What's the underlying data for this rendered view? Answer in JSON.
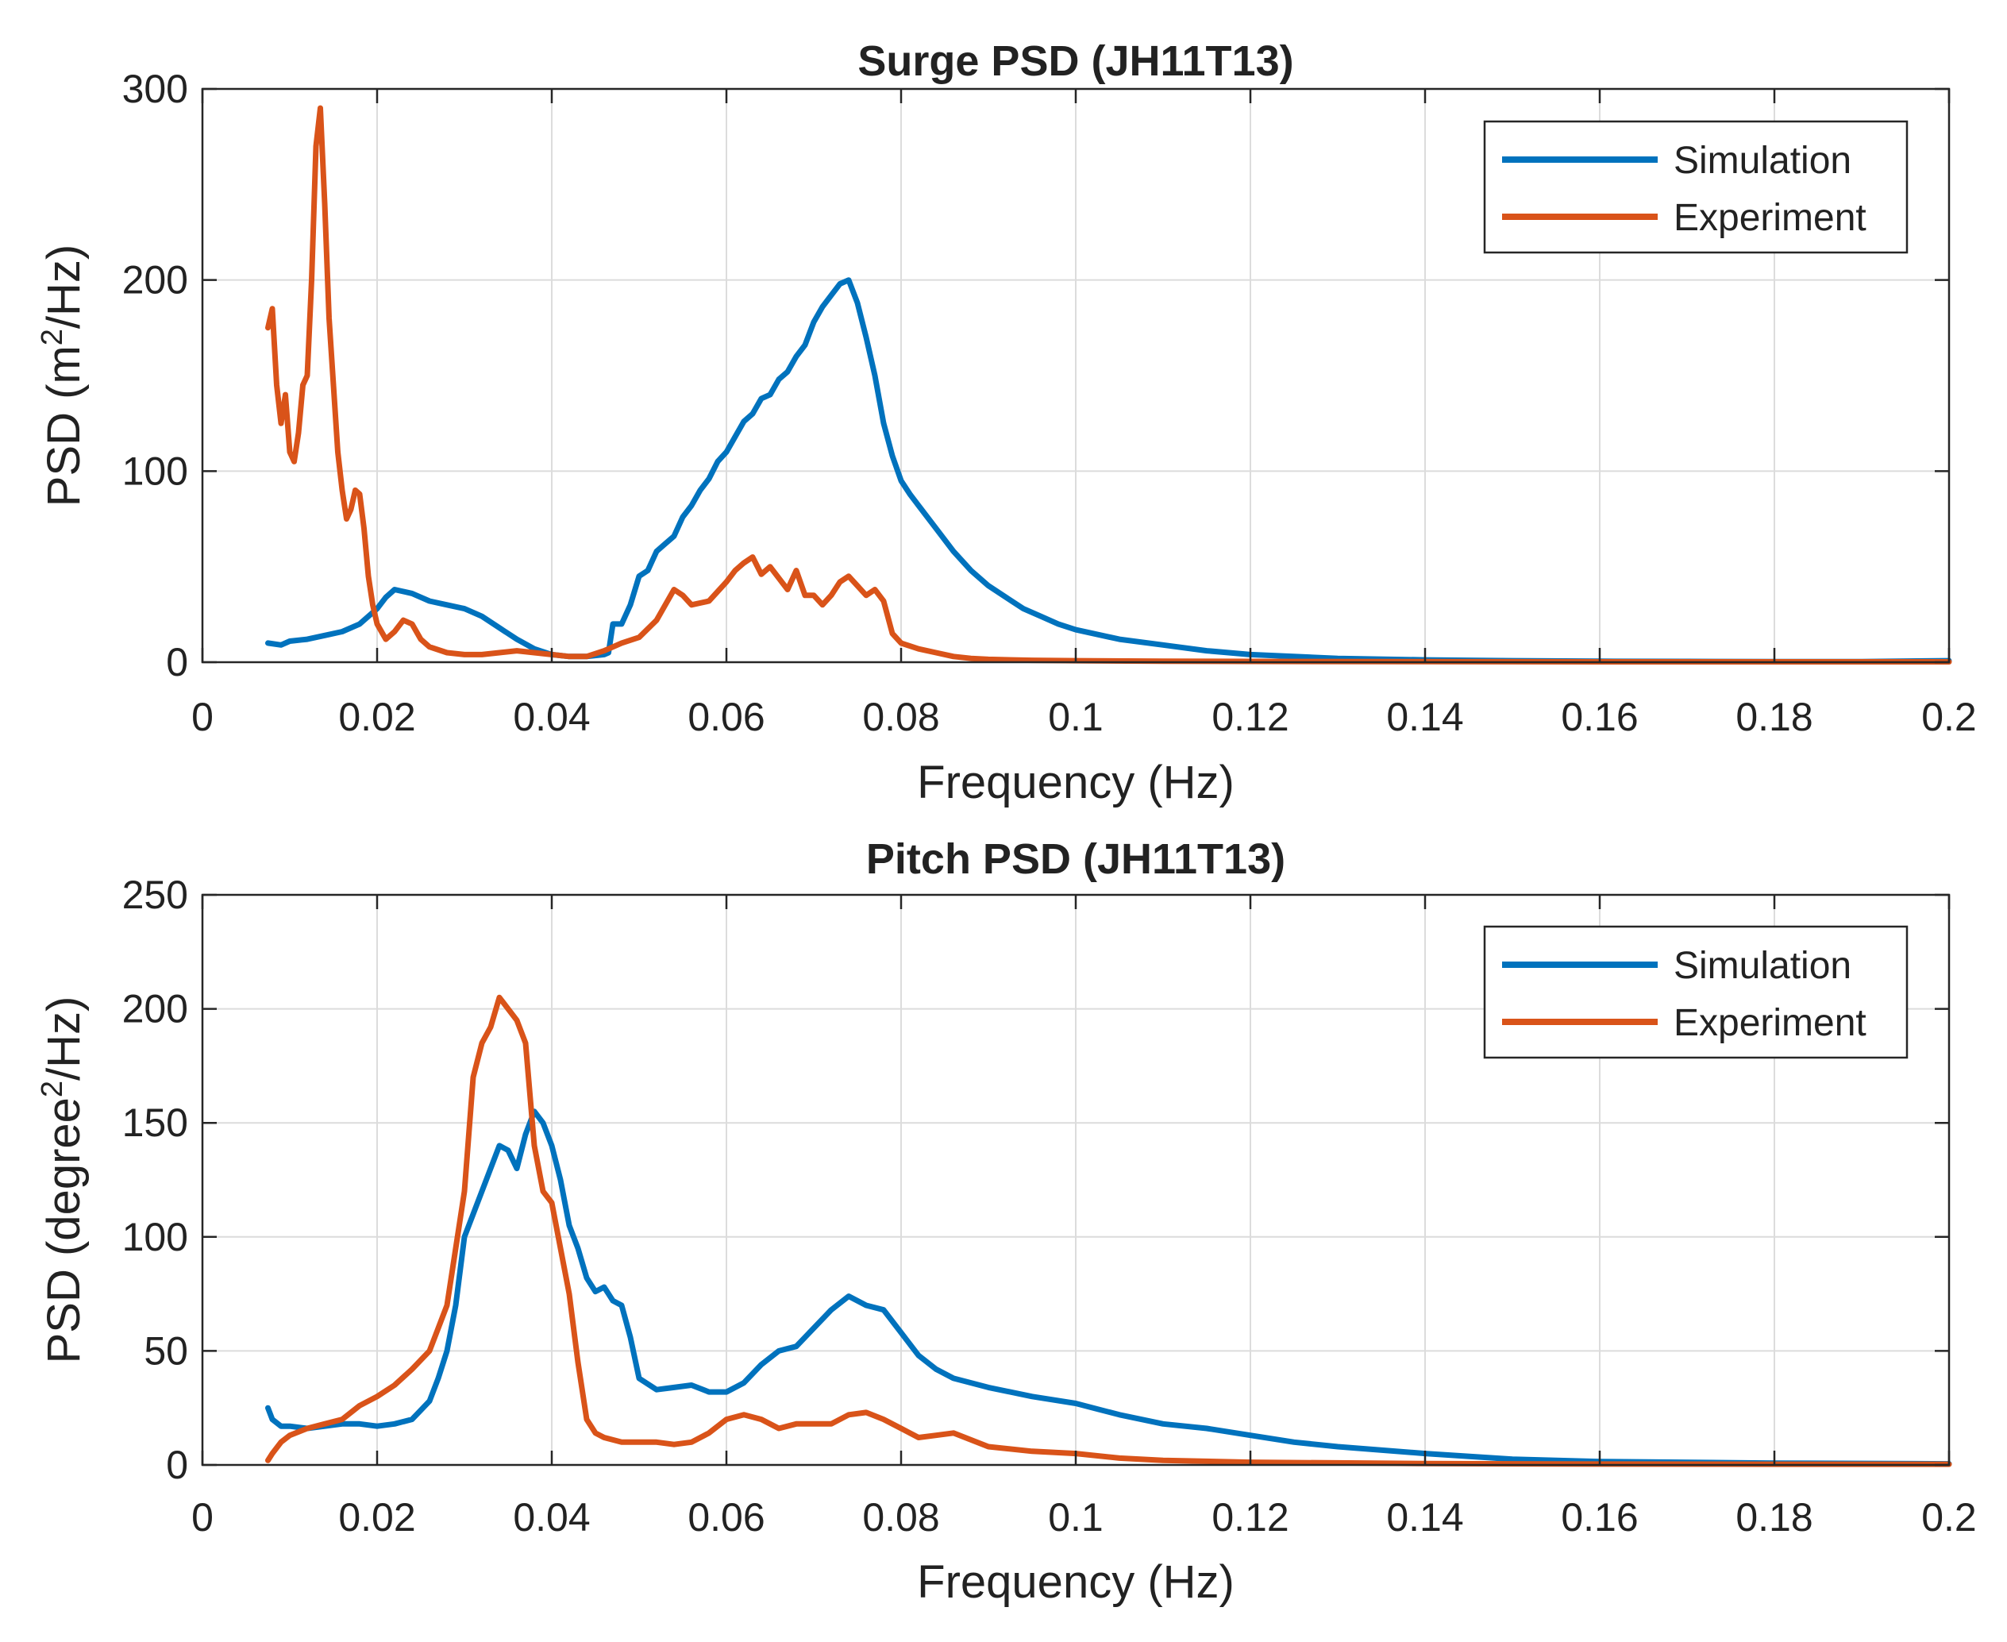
{
  "colors": {
    "simulation": "#0072BD",
    "experiment": "#D95319",
    "axis": "#262626",
    "grid": "#dcdcdc"
  },
  "chart_data": [
    {
      "type": "line",
      "title": "Surge PSD (JH11T13)",
      "xlabel": "Frequency (Hz)",
      "ylabel": {
        "prefix": "PSD (m",
        "sup": "2",
        "suffix": "/Hz)"
      },
      "xlim": [
        0,
        0.2
      ],
      "ylim": [
        0,
        300
      ],
      "xticks": [
        0,
        0.02,
        0.04,
        0.06,
        0.08,
        0.1,
        0.12,
        0.14,
        0.16,
        0.18,
        0.2
      ],
      "xtick_labels": [
        "0",
        "0.02",
        "0.04",
        "0.06",
        "0.08",
        "0.1",
        "0.12",
        "0.14",
        "0.16",
        "0.18",
        "0.2"
      ],
      "yticks": [
        0,
        100,
        200,
        300
      ],
      "ytick_labels": [
        "0",
        "100",
        "200",
        "300"
      ],
      "grid": true,
      "legend": {
        "position": "top-right",
        "entries": [
          "Simulation",
          "Experiment"
        ]
      },
      "series": [
        {
          "name": "Simulation",
          "x": [
            0.0075,
            0.009,
            0.01,
            0.012,
            0.014,
            0.016,
            0.018,
            0.02,
            0.021,
            0.022,
            0.024,
            0.026,
            0.028,
            0.03,
            0.032,
            0.034,
            0.036,
            0.038,
            0.04,
            0.042,
            0.044,
            0.046,
            0.0465,
            0.047,
            0.048,
            0.049,
            0.05,
            0.051,
            0.052,
            0.053,
            0.054,
            0.055,
            0.056,
            0.057,
            0.058,
            0.059,
            0.06,
            0.061,
            0.062,
            0.063,
            0.064,
            0.065,
            0.066,
            0.067,
            0.068,
            0.069,
            0.07,
            0.071,
            0.072,
            0.073,
            0.074,
            0.075,
            0.076,
            0.077,
            0.078,
            0.079,
            0.08,
            0.081,
            0.082,
            0.084,
            0.086,
            0.088,
            0.09,
            0.092,
            0.094,
            0.096,
            0.098,
            0.1,
            0.105,
            0.11,
            0.115,
            0.12,
            0.13,
            0.14,
            0.15,
            0.16,
            0.17,
            0.18,
            0.19,
            0.2
          ],
          "y": [
            10,
            9,
            11,
            12,
            14,
            16,
            20,
            28,
            34,
            38,
            36,
            32,
            30,
            28,
            24,
            18,
            12,
            7,
            4,
            3,
            3,
            4,
            5,
            20,
            20,
            30,
            45,
            48,
            58,
            62,
            66,
            76,
            82,
            90,
            96,
            105,
            110,
            118,
            126,
            130,
            138,
            140,
            148,
            152,
            160,
            166,
            178,
            186,
            192,
            198,
            200,
            188,
            170,
            150,
            125,
            108,
            95,
            88,
            82,
            70,
            58,
            48,
            40,
            34,
            28,
            24,
            20,
            17,
            12,
            9,
            6,
            4,
            2,
            1.2,
            0.8,
            0.5,
            0.4,
            0.3,
            0.3,
            0.8
          ]
        },
        {
          "name": "Experiment",
          "x": [
            0.0075,
            0.008,
            0.0085,
            0.009,
            0.0095,
            0.01,
            0.0105,
            0.011,
            0.0115,
            0.012,
            0.0125,
            0.013,
            0.0135,
            0.014,
            0.0145,
            0.015,
            0.0155,
            0.016,
            0.0165,
            0.017,
            0.0175,
            0.018,
            0.0185,
            0.019,
            0.0195,
            0.02,
            0.021,
            0.022,
            0.023,
            0.024,
            0.025,
            0.026,
            0.028,
            0.03,
            0.032,
            0.034,
            0.036,
            0.038,
            0.04,
            0.042,
            0.044,
            0.046,
            0.048,
            0.05,
            0.052,
            0.054,
            0.055,
            0.056,
            0.058,
            0.06,
            0.061,
            0.062,
            0.063,
            0.064,
            0.065,
            0.066,
            0.067,
            0.068,
            0.069,
            0.07,
            0.071,
            0.072,
            0.073,
            0.074,
            0.075,
            0.076,
            0.077,
            0.078,
            0.079,
            0.08,
            0.082,
            0.084,
            0.086,
            0.088,
            0.09,
            0.095,
            0.1,
            0.11,
            0.12,
            0.14,
            0.16,
            0.18,
            0.2
          ],
          "y": [
            175,
            185,
            145,
            125,
            140,
            110,
            105,
            120,
            145,
            150,
            200,
            270,
            290,
            240,
            180,
            145,
            110,
            90,
            75,
            80,
            90,
            88,
            70,
            45,
            30,
            20,
            12,
            16,
            22,
            20,
            12,
            8,
            5,
            4,
            4,
            5,
            6,
            5,
            4,
            3,
            3,
            6,
            10,
            13,
            22,
            38,
            35,
            30,
            32,
            42,
            48,
            52,
            55,
            46,
            50,
            44,
            38,
            48,
            35,
            35,
            30,
            35,
            42,
            45,
            40,
            35,
            38,
            32,
            15,
            10,
            7,
            5,
            3,
            2,
            1.5,
            1,
            0.8,
            0.5,
            0.4,
            0.3,
            0.2,
            0.2,
            0.2
          ]
        }
      ]
    },
    {
      "type": "line",
      "title": "Pitch PSD (JH11T13)",
      "xlabel": "Frequency (Hz)",
      "ylabel": {
        "prefix": "PSD (degree",
        "sup": "2",
        "suffix": "/Hz)"
      },
      "xlim": [
        0,
        0.2
      ],
      "ylim": [
        0,
        250
      ],
      "xticks": [
        0,
        0.02,
        0.04,
        0.06,
        0.08,
        0.1,
        0.12,
        0.14,
        0.16,
        0.18,
        0.2
      ],
      "xtick_labels": [
        "0",
        "0.02",
        "0.04",
        "0.06",
        "0.08",
        "0.1",
        "0.12",
        "0.14",
        "0.16",
        "0.18",
        "0.2"
      ],
      "yticks": [
        0,
        50,
        100,
        150,
        200,
        250
      ],
      "ytick_labels": [
        "0",
        "50",
        "100",
        "150",
        "200",
        "250"
      ],
      "grid": true,
      "legend": {
        "position": "top-right",
        "entries": [
          "Simulation",
          "Experiment"
        ]
      },
      "series": [
        {
          "name": "Simulation",
          "x": [
            0.0075,
            0.008,
            0.009,
            0.01,
            0.012,
            0.014,
            0.016,
            0.018,
            0.02,
            0.022,
            0.024,
            0.026,
            0.027,
            0.028,
            0.029,
            0.03,
            0.031,
            0.032,
            0.033,
            0.034,
            0.035,
            0.036,
            0.037,
            0.038,
            0.039,
            0.04,
            0.041,
            0.042,
            0.043,
            0.044,
            0.045,
            0.046,
            0.047,
            0.048,
            0.049,
            0.05,
            0.052,
            0.054,
            0.056,
            0.058,
            0.06,
            0.062,
            0.064,
            0.066,
            0.068,
            0.07,
            0.072,
            0.074,
            0.076,
            0.078,
            0.08,
            0.082,
            0.084,
            0.086,
            0.088,
            0.09,
            0.095,
            0.1,
            0.105,
            0.11,
            0.115,
            0.12,
            0.125,
            0.13,
            0.14,
            0.15,
            0.16,
            0.18,
            0.2
          ],
          "y": [
            25,
            20,
            17,
            17,
            16,
            17,
            18,
            18,
            17,
            18,
            20,
            28,
            38,
            50,
            70,
            100,
            110,
            120,
            130,
            140,
            138,
            130,
            145,
            155,
            150,
            140,
            125,
            105,
            95,
            82,
            76,
            78,
            72,
            70,
            56,
            38,
            33,
            34,
            35,
            32,
            32,
            36,
            44,
            50,
            52,
            60,
            68,
            74,
            70,
            68,
            58,
            48,
            42,
            38,
            36,
            34,
            30,
            27,
            22,
            18,
            16,
            13,
            10,
            8,
            5,
            2.5,
            1.5,
            0.8,
            0.5
          ]
        },
        {
          "name": "Experiment",
          "x": [
            0.0075,
            0.008,
            0.009,
            0.01,
            0.012,
            0.014,
            0.016,
            0.018,
            0.02,
            0.022,
            0.024,
            0.026,
            0.027,
            0.028,
            0.029,
            0.03,
            0.031,
            0.032,
            0.033,
            0.034,
            0.035,
            0.036,
            0.037,
            0.038,
            0.039,
            0.04,
            0.041,
            0.042,
            0.043,
            0.044,
            0.045,
            0.046,
            0.048,
            0.05,
            0.052,
            0.054,
            0.056,
            0.058,
            0.06,
            0.062,
            0.064,
            0.066,
            0.068,
            0.07,
            0.072,
            0.074,
            0.076,
            0.078,
            0.08,
            0.082,
            0.084,
            0.086,
            0.088,
            0.09,
            0.095,
            0.1,
            0.105,
            0.11,
            0.12,
            0.14,
            0.16,
            0.18,
            0.2
          ],
          "y": [
            2,
            5,
            10,
            13,
            16,
            18,
            20,
            26,
            30,
            35,
            42,
            50,
            60,
            70,
            95,
            120,
            170,
            185,
            192,
            205,
            200,
            195,
            185,
            140,
            120,
            115,
            95,
            75,
            45,
            20,
            14,
            12,
            10,
            10,
            10,
            9,
            10,
            14,
            20,
            22,
            20,
            16,
            18,
            18,
            18,
            22,
            23,
            20,
            16,
            12,
            13,
            14,
            11,
            8,
            6,
            5,
            3,
            2,
            1.2,
            0.6,
            0.4,
            0.3,
            0.3
          ]
        }
      ]
    }
  ]
}
